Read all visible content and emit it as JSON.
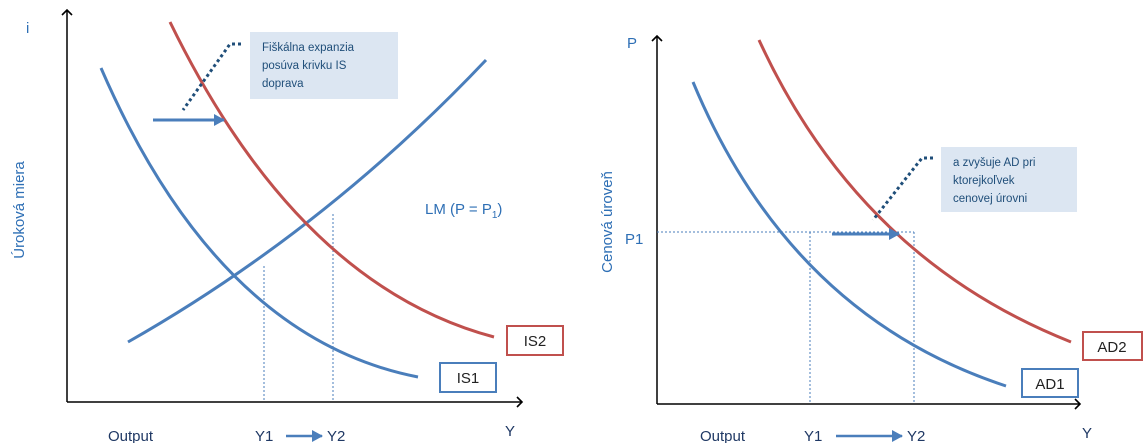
{
  "colors": {
    "blue_curve": "#4A7EBB",
    "red_curve": "#C0504D",
    "axis": "#000000",
    "label_blue": "#2E6FB5",
    "note_fill": "#DCE6F2"
  },
  "left_panel": {
    "y_axis_symbol": "i",
    "y_axis_title": "Úroková miera",
    "x_axis_symbol": "Y",
    "x_axis_title": "Output",
    "tick_y1": "Y1",
    "tick_y2": "Y2",
    "lm_label_main": "LM (P = P",
    "lm_label_sub": "1",
    "lm_label_end": ")",
    "is1_label": "IS1",
    "is2_label": "IS2",
    "note_lines": [
      "Fiškálna expanzia",
      "posúva krivku IS",
      "doprava"
    ]
  },
  "right_panel": {
    "y_axis_symbol": "P",
    "y_axis_title": "Cenová úroveň",
    "x_axis_symbol": "Y",
    "x_axis_title": "Output",
    "tick_y1": "Y1",
    "tick_y2": "Y2",
    "tick_p1": "P1",
    "ad1_label": "AD1",
    "ad2_label": "AD2",
    "note_lines": [
      "a zvyšuje AD pri",
      "ktorejkoľvek",
      "cenovej úrovni"
    ]
  }
}
